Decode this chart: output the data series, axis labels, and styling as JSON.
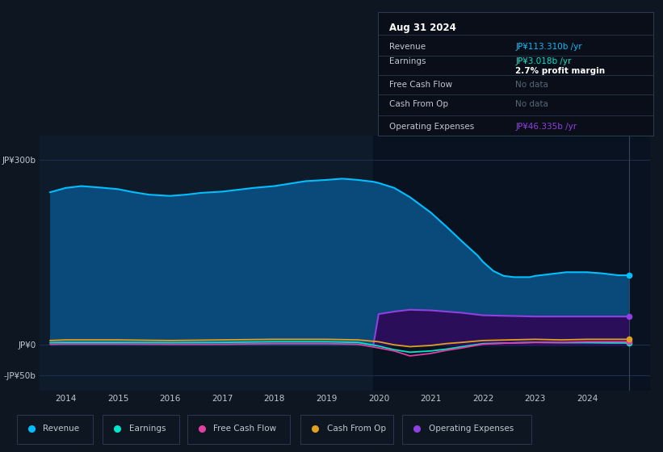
{
  "bg_color": "#0e1621",
  "plot_bg_color": "#0d1b2a",
  "grid_color": "#1e3050",
  "text_color": "#c0c8d0",
  "title_color": "#ffffff",
  "revenue_color": "#00bfff",
  "earnings_color": "#00e5cc",
  "fcf_color": "#e040a0",
  "cashfromop_color": "#e0a020",
  "opex_color": "#9040e0",
  "revenue_fill_color": "#0a4a7a",
  "opex_fill_color": "#2a0e5a",
  "nodata_color": "#556677",
  "yticks_labels": [
    "JP¥300b",
    "JP¥0",
    "-JP¥50b"
  ],
  "yticks_values": [
    300,
    0,
    -50
  ],
  "ylim": [
    -75,
    340
  ],
  "xlim": [
    2013.5,
    2025.2
  ],
  "xtick_years": [
    2014,
    2015,
    2016,
    2017,
    2018,
    2019,
    2020,
    2021,
    2022,
    2023,
    2024
  ],
  "tooltip_title": "Aug 31 2024",
  "tooltip_revenue_label": "Revenue",
  "tooltip_revenue_value": "JP¥113.310b /yr",
  "tooltip_earnings_label": "Earnings",
  "tooltip_earnings_value": "JP¥3.018b /yr",
  "tooltip_margin": "2.7% profit margin",
  "tooltip_fcf_label": "Free Cash Flow",
  "tooltip_fcf_value": "No data",
  "tooltip_cfop_label": "Cash From Op",
  "tooltip_cfop_value": "No data",
  "tooltip_opex_label": "Operating Expenses",
  "tooltip_opex_value": "JP¥46.335b /yr",
  "legend_items": [
    "Revenue",
    "Earnings",
    "Free Cash Flow",
    "Cash From Op",
    "Operating Expenses"
  ],
  "revenue_x": [
    2013.7,
    2014.0,
    2014.3,
    2014.6,
    2015.0,
    2015.3,
    2015.6,
    2016.0,
    2016.3,
    2016.6,
    2017.0,
    2017.3,
    2017.6,
    2018.0,
    2018.3,
    2018.6,
    2019.0,
    2019.3,
    2019.6,
    2019.9,
    2020.0,
    2020.3,
    2020.6,
    2021.0,
    2021.3,
    2021.6,
    2021.9,
    2022.0,
    2022.2,
    2022.4,
    2022.6,
    2022.9,
    2023.0,
    2023.3,
    2023.6,
    2024.0,
    2024.3,
    2024.6,
    2024.8
  ],
  "revenue_y": [
    248,
    255,
    258,
    256,
    253,
    248,
    244,
    242,
    244,
    247,
    249,
    252,
    255,
    258,
    262,
    266,
    268,
    270,
    268,
    265,
    263,
    255,
    240,
    215,
    192,
    168,
    145,
    135,
    120,
    112,
    110,
    110,
    112,
    115,
    118,
    118,
    116,
    113,
    113
  ],
  "earnings_x": [
    2013.7,
    2014.0,
    2015.0,
    2016.0,
    2017.0,
    2018.0,
    2019.0,
    2019.6,
    2020.0,
    2020.3,
    2020.6,
    2021.0,
    2021.3,
    2021.6,
    2022.0,
    2022.5,
    2023.0,
    2023.5,
    2024.0,
    2024.5,
    2024.8
  ],
  "earnings_y": [
    3.5,
    4,
    4,
    3.5,
    4,
    5,
    5,
    4,
    -2,
    -8,
    -12,
    -10,
    -7,
    -3,
    2,
    3,
    4,
    3.5,
    3.5,
    3,
    3
  ],
  "fcf_x": [
    2013.7,
    2014.0,
    2015.0,
    2016.0,
    2017.0,
    2018.0,
    2019.0,
    2019.6,
    2020.0,
    2020.3,
    2020.6,
    2021.0,
    2021.3,
    2021.6,
    2022.0,
    2022.5,
    2023.0,
    2023.5,
    2024.0,
    2024.5,
    2024.8
  ],
  "fcf_y": [
    1,
    1.5,
    1.5,
    1,
    1,
    2,
    2,
    1,
    -5,
    -10,
    -18,
    -14,
    -9,
    -5,
    1,
    3,
    4,
    4,
    5,
    5,
    5
  ],
  "cashfromop_x": [
    2013.7,
    2014.0,
    2015.0,
    2016.0,
    2017.0,
    2018.0,
    2019.0,
    2019.6,
    2020.0,
    2020.3,
    2020.6,
    2021.0,
    2021.3,
    2021.6,
    2022.0,
    2022.5,
    2023.0,
    2023.5,
    2024.0,
    2024.5,
    2024.8
  ],
  "cashfromop_y": [
    7,
    8,
    8,
    7,
    8,
    9,
    9,
    8,
    5,
    0,
    -3,
    -1,
    2,
    4,
    7,
    8,
    9,
    8,
    9,
    9,
    9
  ],
  "opex_x": [
    2019.9,
    2020.0,
    2020.3,
    2020.6,
    2021.0,
    2021.3,
    2021.6,
    2022.0,
    2022.5,
    2023.0,
    2023.5,
    2024.0,
    2024.5,
    2024.8
  ],
  "opex_y": [
    0,
    50,
    54,
    57,
    56,
    54,
    52,
    48,
    47,
    46,
    46,
    46,
    46,
    46
  ],
  "vertical_line_x": 2024.8,
  "shade_start_x": 2019.9
}
